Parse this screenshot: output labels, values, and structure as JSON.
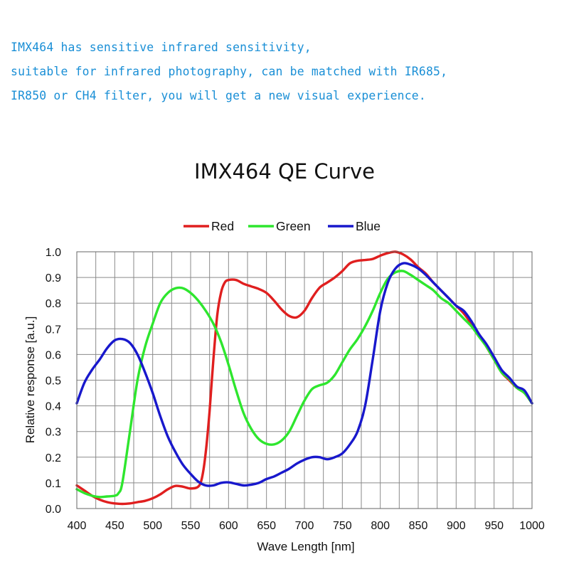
{
  "intro": {
    "lines": [
      "IMX464 has sensitive infrared sensitivity,",
      "suitable for infrared photography,  can be matched with IR685,",
      "IR850 or CH4 filter, you will get a new visual experience."
    ]
  },
  "chart_data": {
    "type": "line",
    "title": "IMX464 QE Curve",
    "xlabel": "Wave Length [nm]",
    "ylabel": "Relative response [a.u.]",
    "xlim": [
      400,
      1000
    ],
    "ylim": [
      0,
      1.0
    ],
    "xticks": [
      400,
      450,
      500,
      550,
      600,
      650,
      700,
      750,
      800,
      850,
      900,
      950,
      1000
    ],
    "yticks": [
      "0.0",
      "0.1",
      "0.2",
      "0.3",
      "0.4",
      "0.5",
      "0.6",
      "0.7",
      "0.8",
      "0.9",
      "1.0"
    ],
    "xgrid_step": 25,
    "grid": true,
    "legend_position": "top",
    "series": [
      {
        "name": "Red",
        "color": "#e01f1f",
        "points": [
          [
            400,
            0.09
          ],
          [
            410,
            0.07
          ],
          [
            420,
            0.05
          ],
          [
            430,
            0.035
          ],
          [
            440,
            0.025
          ],
          [
            450,
            0.02
          ],
          [
            460,
            0.018
          ],
          [
            470,
            0.02
          ],
          [
            480,
            0.025
          ],
          [
            490,
            0.03
          ],
          [
            500,
            0.04
          ],
          [
            510,
            0.055
          ],
          [
            520,
            0.075
          ],
          [
            530,
            0.088
          ],
          [
            540,
            0.085
          ],
          [
            550,
            0.078
          ],
          [
            560,
            0.085
          ],
          [
            565,
            0.12
          ],
          [
            570,
            0.22
          ],
          [
            575,
            0.38
          ],
          [
            580,
            0.58
          ],
          [
            585,
            0.75
          ],
          [
            590,
            0.84
          ],
          [
            595,
            0.88
          ],
          [
            600,
            0.89
          ],
          [
            610,
            0.89
          ],
          [
            620,
            0.875
          ],
          [
            630,
            0.865
          ],
          [
            640,
            0.855
          ],
          [
            650,
            0.84
          ],
          [
            660,
            0.81
          ],
          [
            670,
            0.775
          ],
          [
            680,
            0.75
          ],
          [
            690,
            0.745
          ],
          [
            700,
            0.77
          ],
          [
            710,
            0.82
          ],
          [
            720,
            0.86
          ],
          [
            730,
            0.88
          ],
          [
            740,
            0.9
          ],
          [
            750,
            0.925
          ],
          [
            760,
            0.955
          ],
          [
            770,
            0.965
          ],
          [
            780,
            0.968
          ],
          [
            790,
            0.972
          ],
          [
            800,
            0.985
          ],
          [
            810,
            0.995
          ],
          [
            820,
            1.0
          ],
          [
            830,
            0.99
          ],
          [
            840,
            0.97
          ],
          [
            850,
            0.94
          ],
          [
            860,
            0.915
          ],
          [
            870,
            0.88
          ],
          [
            880,
            0.85
          ],
          [
            890,
            0.82
          ],
          [
            900,
            0.79
          ],
          [
            910,
            0.76
          ],
          [
            920,
            0.72
          ],
          [
            930,
            0.68
          ],
          [
            940,
            0.63
          ],
          [
            950,
            0.58
          ],
          [
            960,
            0.53
          ],
          [
            970,
            0.5
          ],
          [
            980,
            0.47
          ],
          [
            990,
            0.45
          ],
          [
            1000,
            0.41
          ]
        ]
      },
      {
        "name": "Green",
        "color": "#2ee62e",
        "points": [
          [
            400,
            0.075
          ],
          [
            410,
            0.06
          ],
          [
            420,
            0.05
          ],
          [
            430,
            0.045
          ],
          [
            440,
            0.047
          ],
          [
            450,
            0.05
          ],
          [
            455,
            0.06
          ],
          [
            460,
            0.1
          ],
          [
            470,
            0.3
          ],
          [
            480,
            0.5
          ],
          [
            490,
            0.63
          ],
          [
            500,
            0.72
          ],
          [
            510,
            0.8
          ],
          [
            520,
            0.84
          ],
          [
            530,
            0.858
          ],
          [
            540,
            0.858
          ],
          [
            550,
            0.84
          ],
          [
            560,
            0.81
          ],
          [
            570,
            0.77
          ],
          [
            580,
            0.72
          ],
          [
            590,
            0.65
          ],
          [
            600,
            0.56
          ],
          [
            610,
            0.46
          ],
          [
            620,
            0.37
          ],
          [
            630,
            0.31
          ],
          [
            640,
            0.27
          ],
          [
            650,
            0.252
          ],
          [
            660,
            0.25
          ],
          [
            670,
            0.265
          ],
          [
            680,
            0.3
          ],
          [
            690,
            0.36
          ],
          [
            700,
            0.42
          ],
          [
            710,
            0.465
          ],
          [
            720,
            0.48
          ],
          [
            730,
            0.49
          ],
          [
            740,
            0.52
          ],
          [
            750,
            0.57
          ],
          [
            760,
            0.62
          ],
          [
            770,
            0.66
          ],
          [
            780,
            0.71
          ],
          [
            790,
            0.77
          ],
          [
            800,
            0.84
          ],
          [
            810,
            0.895
          ],
          [
            820,
            0.92
          ],
          [
            830,
            0.925
          ],
          [
            840,
            0.91
          ],
          [
            850,
            0.89
          ],
          [
            860,
            0.87
          ],
          [
            870,
            0.85
          ],
          [
            880,
            0.82
          ],
          [
            890,
            0.8
          ],
          [
            900,
            0.77
          ],
          [
            910,
            0.74
          ],
          [
            920,
            0.71
          ],
          [
            930,
            0.67
          ],
          [
            940,
            0.63
          ],
          [
            950,
            0.58
          ],
          [
            960,
            0.53
          ],
          [
            970,
            0.505
          ],
          [
            980,
            0.47
          ],
          [
            990,
            0.45
          ],
          [
            1000,
            0.41
          ]
        ]
      },
      {
        "name": "Blue",
        "color": "#1818cc",
        "points": [
          [
            400,
            0.41
          ],
          [
            410,
            0.49
          ],
          [
            420,
            0.54
          ],
          [
            430,
            0.58
          ],
          [
            440,
            0.625
          ],
          [
            450,
            0.655
          ],
          [
            460,
            0.66
          ],
          [
            470,
            0.645
          ],
          [
            480,
            0.6
          ],
          [
            490,
            0.53
          ],
          [
            500,
            0.45
          ],
          [
            510,
            0.36
          ],
          [
            520,
            0.28
          ],
          [
            530,
            0.22
          ],
          [
            540,
            0.17
          ],
          [
            550,
            0.135
          ],
          [
            560,
            0.105
          ],
          [
            570,
            0.09
          ],
          [
            580,
            0.09
          ],
          [
            590,
            0.1
          ],
          [
            600,
            0.102
          ],
          [
            610,
            0.096
          ],
          [
            620,
            0.09
          ],
          [
            630,
            0.093
          ],
          [
            640,
            0.1
          ],
          [
            650,
            0.115
          ],
          [
            660,
            0.125
          ],
          [
            670,
            0.14
          ],
          [
            680,
            0.155
          ],
          [
            690,
            0.175
          ],
          [
            700,
            0.19
          ],
          [
            710,
            0.2
          ],
          [
            720,
            0.2
          ],
          [
            730,
            0.192
          ],
          [
            740,
            0.2
          ],
          [
            750,
            0.215
          ],
          [
            760,
            0.25
          ],
          [
            770,
            0.3
          ],
          [
            780,
            0.4
          ],
          [
            790,
            0.58
          ],
          [
            800,
            0.77
          ],
          [
            810,
            0.88
          ],
          [
            820,
            0.935
          ],
          [
            830,
            0.955
          ],
          [
            840,
            0.95
          ],
          [
            850,
            0.935
          ],
          [
            860,
            0.91
          ],
          [
            870,
            0.88
          ],
          [
            880,
            0.85
          ],
          [
            890,
            0.82
          ],
          [
            900,
            0.79
          ],
          [
            910,
            0.77
          ],
          [
            920,
            0.73
          ],
          [
            930,
            0.68
          ],
          [
            940,
            0.64
          ],
          [
            950,
            0.59
          ],
          [
            960,
            0.54
          ],
          [
            970,
            0.51
          ],
          [
            980,
            0.475
          ],
          [
            990,
            0.46
          ],
          [
            1000,
            0.41
          ]
        ]
      }
    ]
  }
}
